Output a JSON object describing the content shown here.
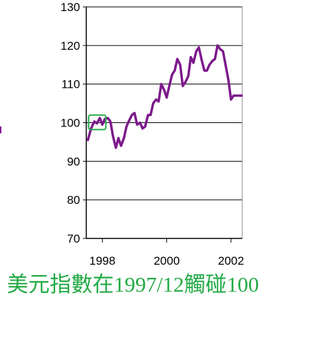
{
  "chart_data": {
    "type": "line",
    "title": "",
    "xlabel": "",
    "ylabel": "",
    "xlim": [
      1997.5,
      2002.35
    ],
    "ylim": [
      70,
      130
    ],
    "yticks": [
      70,
      80,
      90,
      100,
      110,
      120,
      130
    ],
    "xticks": [
      1998,
      2000,
      2002
    ],
    "grid": true,
    "colors": {
      "line": "#7d1a8c",
      "highlight_box": "#22aa44",
      "caption": "#22aa44"
    },
    "series": [
      {
        "x": [
          1997.55,
          1997.65,
          1997.75,
          1997.83,
          1997.92,
          1998.0,
          1998.08,
          1998.17,
          1998.25,
          1998.33,
          1998.42,
          1998.5,
          1998.58,
          1998.67,
          1998.75,
          1998.83,
          1998.92,
          1999.0,
          1999.08,
          1999.17,
          1999.25,
          1999.33,
          1999.42,
          1999.5,
          1999.58,
          1999.67,
          1999.75,
          1999.83,
          1999.92,
          2000.0,
          2000.08,
          2000.17,
          2000.25,
          2000.33,
          2000.42,
          2000.5,
          2000.58,
          2000.67,
          2000.75,
          2000.83,
          2000.92,
          2001.0,
          2001.08,
          2001.17,
          2001.25,
          2001.33,
          2001.42,
          2001.5,
          2001.58,
          2001.67,
          2001.75,
          2001.83,
          2001.92,
          2002.0,
          2002.08,
          2002.17,
          2002.25,
          2002.33
        ],
        "y": [
          95.5,
          98.5,
          100.3,
          99.8,
          101.2,
          99.5,
          101.0,
          101.2,
          100.3,
          96.5,
          93.5,
          96.0,
          94.0,
          96.0,
          99.0,
          100.5,
          102.0,
          102.5,
          99.5,
          100.0,
          98.5,
          99.0,
          102.0,
          102.0,
          105.0,
          106.0,
          105.5,
          110.0,
          108.5,
          106.5,
          109.5,
          112.5,
          113.5,
          116.5,
          115.0,
          109.5,
          110.5,
          112.0,
          117.0,
          115.5,
          118.5,
          119.5,
          116.5,
          113.5,
          113.5,
          115.0,
          116.0,
          116.5,
          120.0,
          119.0,
          118.5,
          115.0,
          111.0,
          106.0,
          107.0,
          107.0,
          107.0,
          107.0
        ]
      }
    ],
    "highlight": {
      "x": 1997.83,
      "y": 100
    }
  },
  "caption": "美元指數在1997/12觸碰100"
}
